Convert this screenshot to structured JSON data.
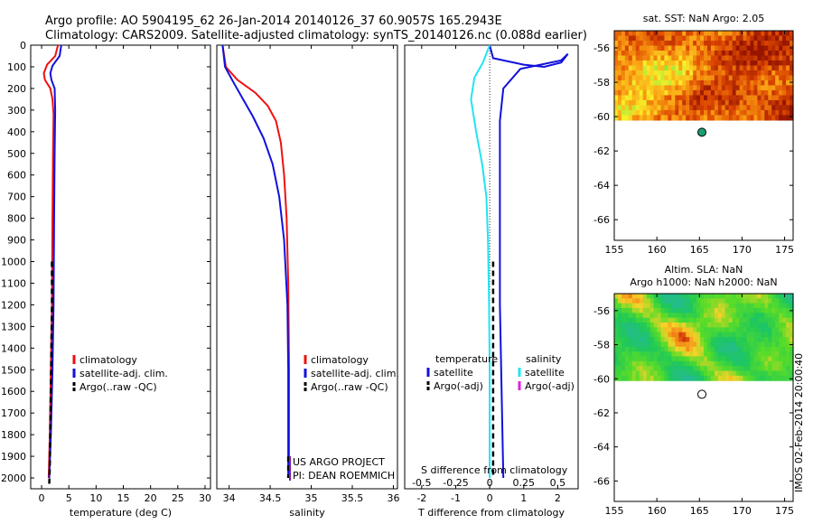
{
  "header": {
    "line1": "Argo profile: AO 5904195_62 26-Jan-2014 20140126_37 60.9057S 165.2943E",
    "line2": "Climatology: CARS2009. Satellite-adjusted climatology: synTS_20140126.nc (0.088d earlier)"
  },
  "side_label": "IMOS 02-Feb-2014 20:00:40",
  "colors": {
    "climatology": "#ee1111",
    "satellite": "#1111dd",
    "argo": "#000000",
    "salinity_diff": "#22e4f2",
    "argo_sal_diff": "#dd22dd",
    "float_marker": "#1a9e74"
  },
  "chart_data": [
    {
      "type": "line",
      "id": "temperature",
      "xlabel": "temperature (deg C)",
      "ylabel": "",
      "xlim": [
        -2,
        31
      ],
      "ylim": [
        2050,
        0
      ],
      "xticks": [
        0,
        5,
        10,
        15,
        20,
        25,
        30
      ],
      "yticks": [
        0,
        100,
        200,
        300,
        400,
        500,
        600,
        700,
        800,
        900,
        1000,
        1100,
        1200,
        1300,
        1400,
        1500,
        1600,
        1700,
        1800,
        1900,
        2000
      ],
      "legend": [
        "climatology",
        "satellite-adj. clim.",
        "Argo(..raw -QC)"
      ],
      "series": [
        {
          "name": "climatology",
          "style": "solid",
          "color": "#ee1111",
          "points": [
            [
              3.0,
              0
            ],
            [
              2.5,
              50
            ],
            [
              1.0,
              90
            ],
            [
              0.4,
              130
            ],
            [
              0.6,
              160
            ],
            [
              1.6,
              200
            ],
            [
              2.0,
              250
            ],
            [
              2.2,
              320
            ],
            [
              2.1,
              500
            ],
            [
              2.0,
              800
            ],
            [
              1.9,
              1200
            ],
            [
              1.7,
              1500
            ],
            [
              1.5,
              1800
            ],
            [
              1.3,
              2000
            ]
          ]
        },
        {
          "name": "satellite-adj. clim.",
          "style": "solid",
          "color": "#1111dd",
          "points": [
            [
              3.6,
              0
            ],
            [
              3.3,
              50
            ],
            [
              2.0,
              95
            ],
            [
              1.6,
              130
            ],
            [
              1.8,
              160
            ],
            [
              2.4,
              200
            ],
            [
              2.5,
              300
            ],
            [
              2.4,
              500
            ],
            [
              2.3,
              800
            ],
            [
              2.2,
              1200
            ],
            [
              2.0,
              1500
            ],
            [
              1.7,
              1800
            ],
            [
              1.4,
              2000
            ]
          ]
        },
        {
          "name": "Argo(..raw -QC)",
          "style": "dashed",
          "color": "#000000",
          "points": [
            [
              1.9,
              1000
            ],
            [
              1.9,
              1200
            ],
            [
              1.8,
              1400
            ],
            [
              1.7,
              1600
            ],
            [
              1.6,
              1800
            ],
            [
              1.5,
              1950
            ],
            [
              1.4,
              2030
            ]
          ]
        }
      ]
    },
    {
      "type": "line",
      "id": "salinity",
      "xlabel": "salinity",
      "ylabel": "",
      "xlim": [
        33.85,
        36.05
      ],
      "ylim": [
        2050,
        0
      ],
      "xticks": [
        34,
        34.5,
        35,
        35.5,
        36
      ],
      "xtick_labels": [
        "34",
        "34.5",
        "35",
        "35.5",
        "36"
      ],
      "legend": [
        "climatology",
        "satellite-adj. clim.",
        "Argo(..raw -QC)"
      ],
      "annotation": [
        "US ARGO PROJECT",
        "PI: DEAN ROEMMICH"
      ],
      "series": [
        {
          "name": "climatology",
          "style": "solid",
          "color": "#ee1111",
          "points": [
            [
              33.92,
              0
            ],
            [
              33.96,
              100
            ],
            [
              34.1,
              160
            ],
            [
              34.32,
              220
            ],
            [
              34.47,
              280
            ],
            [
              34.57,
              350
            ],
            [
              34.63,
              450
            ],
            [
              34.67,
              600
            ],
            [
              34.7,
              800
            ],
            [
              34.72,
              1100
            ],
            [
              34.73,
              1500
            ],
            [
              34.73,
              2000
            ]
          ]
        },
        {
          "name": "satellite-adj. clim.",
          "style": "solid",
          "color": "#1111dd",
          "points": [
            [
              33.92,
              0
            ],
            [
              33.95,
              100
            ],
            [
              34.05,
              170
            ],
            [
              34.17,
              250
            ],
            [
              34.29,
              330
            ],
            [
              34.42,
              430
            ],
            [
              34.53,
              550
            ],
            [
              34.61,
              700
            ],
            [
              34.67,
              900
            ],
            [
              34.71,
              1200
            ],
            [
              34.72,
              1500
            ],
            [
              34.72,
              2000
            ]
          ]
        },
        {
          "name": "Argo(..raw -QC)",
          "style": "dashed",
          "color": "#000000",
          "points": [
            [
              34.72,
              1900
            ],
            [
              34.72,
              2000
            ]
          ]
        }
      ]
    },
    {
      "type": "line",
      "id": "difference",
      "xlabel": "T difference from climatology",
      "xlabel_top": "S difference from climatology",
      "xlim": [
        -2.5,
        2.6
      ],
      "ylim": [
        2050,
        0
      ],
      "xticks": [
        -2,
        -1,
        0,
        1,
        2
      ],
      "s_ticks": [
        -0.5,
        -0.25,
        0,
        0.25,
        0.5
      ],
      "s_tick_labels": [
        "-0.5",
        "-0.25",
        "0",
        "0.25",
        "0.5"
      ],
      "s_scale_factor": 4,
      "legend_temperature": {
        "title": "temperature",
        "items": [
          "satellite",
          "Argo(-adj)"
        ]
      },
      "legend_salinity": {
        "title": "salinity",
        "items": [
          "satellite",
          "Argo(-adj)"
        ]
      },
      "series": [
        {
          "name": "satellite",
          "group": "temperature",
          "style": "solid",
          "color": "#1111dd",
          "points": [
            [
              0.0,
              0
            ],
            [
              0.1,
              60
            ],
            [
              1.0,
              90
            ],
            [
              1.6,
              100
            ],
            [
              2.1,
              80
            ],
            [
              2.3,
              40
            ],
            [
              2.1,
              70
            ],
            [
              0.9,
              110
            ],
            [
              0.4,
              200
            ],
            [
              0.3,
              350
            ],
            [
              0.3,
              600
            ],
            [
              0.3,
              900
            ],
            [
              0.3,
              1200
            ],
            [
              0.35,
              1600
            ],
            [
              0.4,
              2000
            ]
          ]
        },
        {
          "name": "satellite",
          "group": "salinity",
          "style": "solid",
          "color": "#22e4f2",
          "points": [
            [
              0.0,
              0
            ],
            [
              -0.2,
              80
            ],
            [
              -0.45,
              150
            ],
            [
              -0.55,
              250
            ],
            [
              -0.4,
              400
            ],
            [
              -0.22,
              550
            ],
            [
              -0.1,
              700
            ],
            [
              -0.05,
              900
            ],
            [
              -0.02,
              1200
            ],
            [
              0.0,
              1500
            ],
            [
              0.0,
              2000
            ]
          ]
        },
        {
          "name": "Argo(-adj)",
          "group": "temperature",
          "style": "dashed",
          "color": "#000000",
          "points": [
            [
              0.1,
              1000
            ],
            [
              0.1,
              1200
            ],
            [
              0.1,
              1500
            ],
            [
              0.1,
              1800
            ],
            [
              0.1,
              2000
            ]
          ]
        }
      ]
    },
    {
      "type": "heatmap",
      "id": "sst_map",
      "title": "sat. SST: NaN Argo: 2.05",
      "xlim": [
        155,
        176
      ],
      "ylim": [
        -67.2,
        -55
      ],
      "xticks": [
        155,
        160,
        165,
        170,
        175
      ],
      "yticks": [
        -56,
        -58,
        -60,
        -62,
        -64,
        -66
      ],
      "data_extent": {
        "lon": [
          155,
          176
        ],
        "lat": [
          -60.2,
          -55
        ]
      },
      "palette": "hot",
      "float_position": {
        "lon": 165.29,
        "lat": -60.91
      }
    },
    {
      "type": "heatmap",
      "id": "sla_map",
      "title": "Altim. SLA: NaN",
      "subtitle": "Argo h1000: NaN h2000: NaN",
      "xlim": [
        155,
        176
      ],
      "ylim": [
        -67.2,
        -55
      ],
      "xticks": [
        155,
        160,
        165,
        170,
        175
      ],
      "yticks": [
        -56,
        -58,
        -60,
        -62,
        -64,
        -66
      ],
      "data_extent": {
        "lon": [
          155,
          176
        ],
        "lat": [
          -60.1,
          -55
        ]
      },
      "palette": "jet",
      "float_position": {
        "lon": 165.29,
        "lat": -60.91
      }
    }
  ]
}
